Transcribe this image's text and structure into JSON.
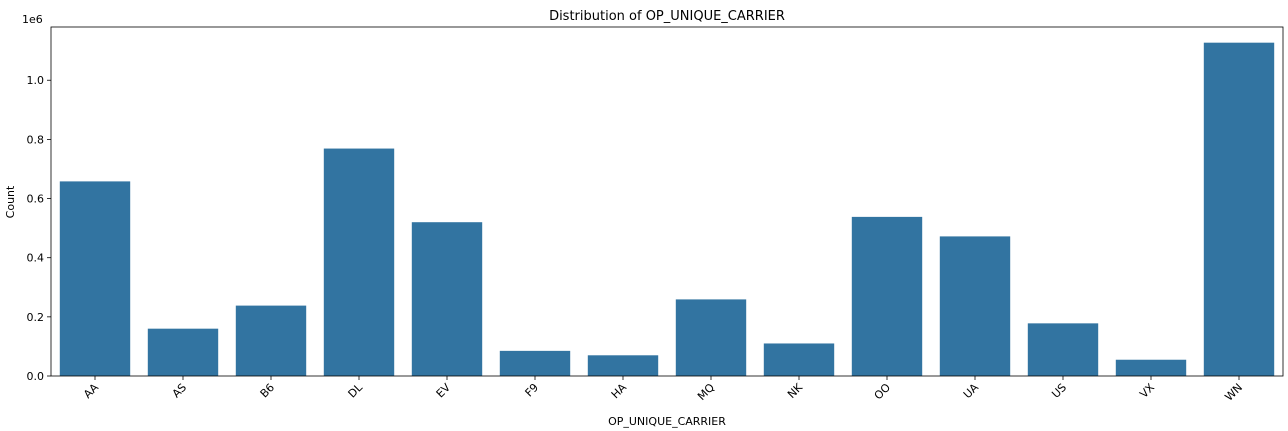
{
  "chart_data": {
    "type": "bar",
    "title": "Distribution of OP_UNIQUE_CARRIER",
    "xlabel": "OP_UNIQUE_CARRIER",
    "ylabel": "Count",
    "y_offset_label": "1e6",
    "categories": [
      "AA",
      "AS",
      "B6",
      "DL",
      "EV",
      "F9",
      "HA",
      "MQ",
      "NK",
      "OO",
      "UA",
      "US",
      "VX",
      "WN"
    ],
    "values": [
      658000,
      160000,
      238000,
      769000,
      520000,
      85000,
      70000,
      259000,
      110000,
      538000,
      472000,
      178000,
      55000,
      1127000
    ],
    "ylim": [
      0,
      1180000
    ],
    "yticks": [
      0,
      200000,
      400000,
      600000,
      800000,
      1000000
    ],
    "ytick_labels": [
      "0.0",
      "0.2",
      "0.4",
      "0.6",
      "0.8",
      "1.0"
    ],
    "bar_color": "#3274a1",
    "grid": false
  }
}
